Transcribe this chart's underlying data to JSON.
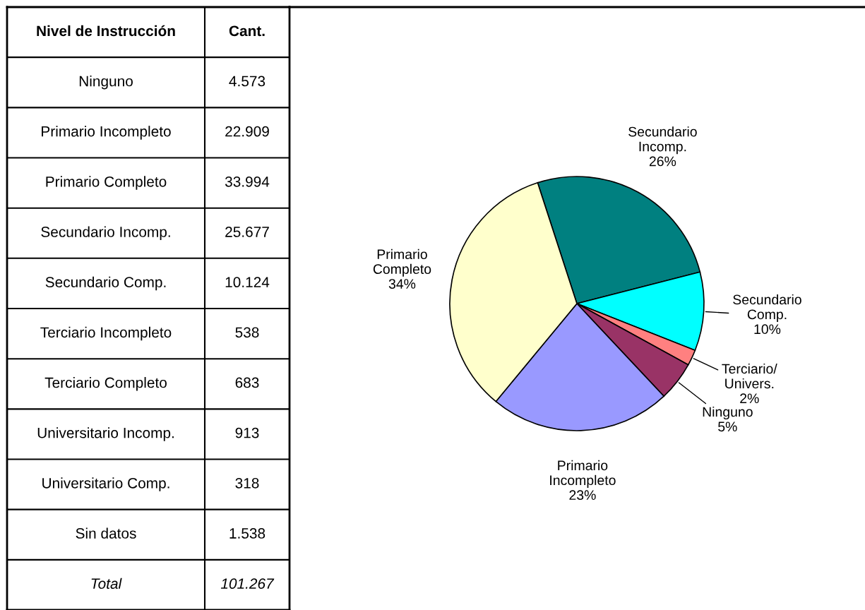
{
  "chart_data": [
    {
      "type": "other",
      "xlabel": "Nivel de Instrucción",
      "ylabel": "Cant.",
      "categories": [
        "Ninguno",
        "Primario Incompleto",
        "Primario Completo",
        "Secundario Incomp.",
        "Secundario Comp.",
        "Terciario Incompleto",
        "Terciario Completo",
        "Universitario Incomp.",
        "Universitario Comp.",
        "Sin datos"
      ],
      "value_labels": [
        "4.573",
        "22.909",
        "33.994",
        "25.677",
        "10.124",
        "538",
        "683",
        "913",
        "318",
        "1.538"
      ],
      "annotations": [
        "Total"
      ],
      "totals": [
        "101.267"
      ]
    },
    {
      "type": "pie",
      "categories": [
        "Secundario\nIncomp.",
        "Secundario\nComp.",
        "Terciario/\nUnivers.",
        "Ninguno",
        "Primario\nIncompleto",
        "Primario\nCompleto"
      ],
      "values": [
        26,
        10,
        2,
        5,
        23,
        34
      ],
      "value_labels": [
        "26%",
        "10%",
        "2%",
        "5%",
        "23%",
        "34%"
      ],
      "colors": [
        "#008080",
        "#00ffff",
        "#ff8080",
        "#993366",
        "#9999ff",
        "#ffffcc"
      ]
    }
  ]
}
